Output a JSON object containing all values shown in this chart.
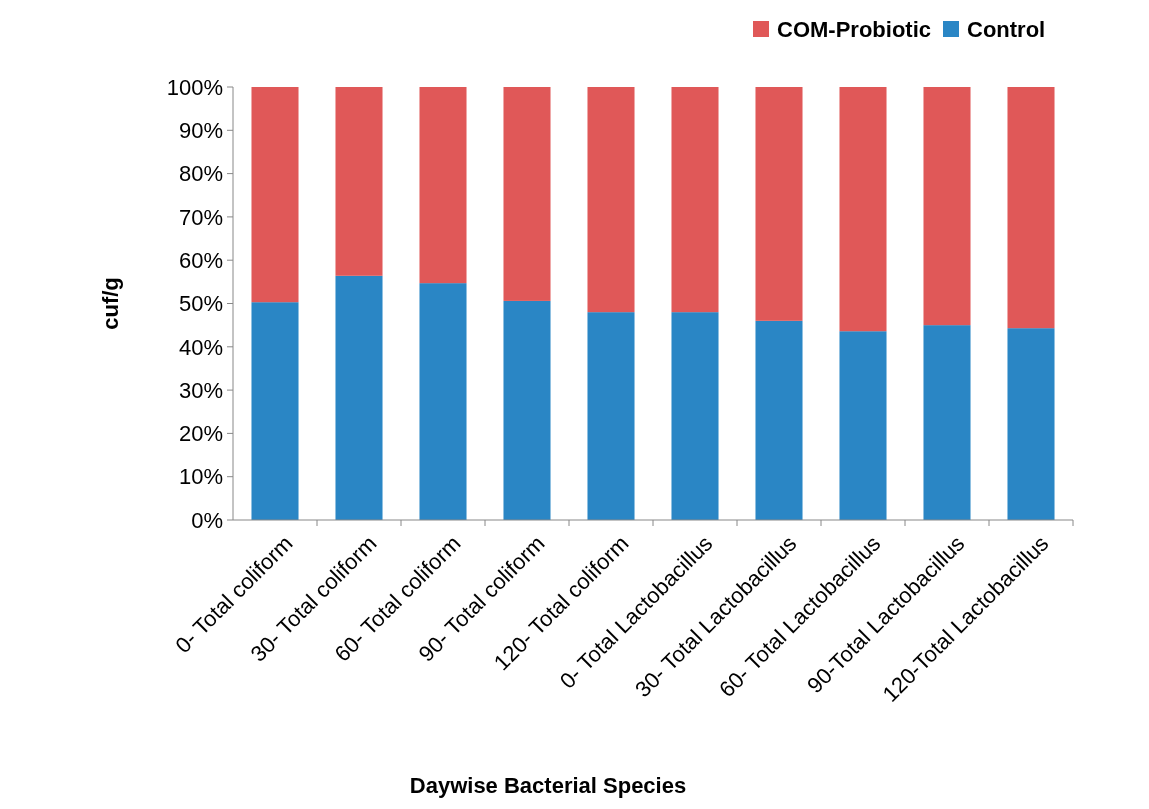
{
  "chart_data": {
    "type": "bar",
    "stacked": true,
    "xlabel": "Daywise Bacterial Species",
    "ylabel": "cuf/g",
    "categories": [
      "0- Total coliform",
      "30- Total coliform",
      "60- Total coliform",
      "90- Total coliform",
      "120- Total coliform",
      "0- Total Lactobacillus",
      "30- Total Lactobacillus",
      "60- Total Lactobacillus",
      "90-Total Lactobacillus",
      "120-Total Lactobacillus"
    ],
    "series": [
      {
        "name": "Control",
        "color": "#2a86c5",
        "values": [
          50.3,
          56.4,
          54.7,
          50.6,
          48.0,
          48.0,
          46.0,
          43.6,
          45.0,
          44.3
        ]
      },
      {
        "name": "COM-Probiotic",
        "color": "#e05858",
        "values": [
          49.7,
          43.6,
          45.3,
          49.4,
          52.0,
          52.0,
          54.0,
          56.4,
          55.0,
          55.7
        ]
      }
    ],
    "ylim": [
      0,
      100
    ],
    "yticks": [
      {
        "value": 0,
        "label": "0%"
      },
      {
        "value": 10,
        "label": "10%"
      },
      {
        "value": 20,
        "label": "20%"
      },
      {
        "value": 30,
        "label": "30%"
      },
      {
        "value": 40,
        "label": "40%"
      },
      {
        "value": 50,
        "label": "50%"
      },
      {
        "value": 60,
        "label": "60%"
      },
      {
        "value": 70,
        "label": "70%"
      },
      {
        "value": 80,
        "label": "80%"
      },
      {
        "value": 90,
        "label": "90%"
      },
      {
        "value": 100,
        "label": "100%"
      }
    ],
    "grid": false,
    "legend": "top right"
  }
}
